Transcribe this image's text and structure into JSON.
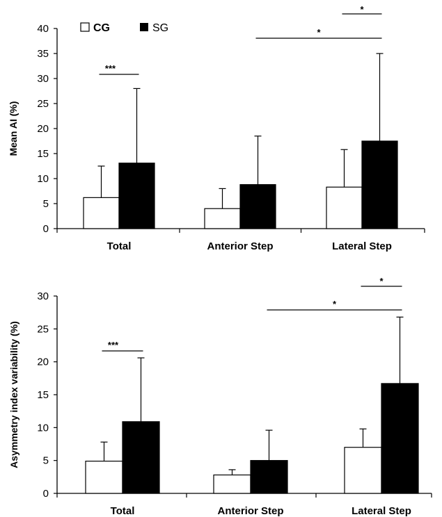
{
  "legend": {
    "cg": "CG",
    "sg": "SG"
  },
  "chart_data": [
    {
      "type": "bar",
      "ylabel": "Mean AI (%)",
      "xlabel": "",
      "ylim": [
        0,
        40
      ],
      "yticks": [
        0,
        5,
        10,
        15,
        20,
        25,
        30,
        35,
        40
      ],
      "categories": [
        "Total",
        "Anterior Step",
        "Lateral Step"
      ],
      "series": [
        {
          "name": "CG",
          "color": "#ffffff",
          "values": [
            6.2,
            4.0,
            8.3
          ],
          "errors": [
            6.3,
            4.0,
            7.5
          ]
        },
        {
          "name": "SG",
          "color": "#000000",
          "values": [
            13.1,
            8.8,
            17.5
          ],
          "errors": [
            14.9,
            9.7,
            17.5
          ]
        }
      ],
      "significance": [
        {
          "label": "***",
          "from": "Total CG",
          "to": "Total SG"
        },
        {
          "label": "*",
          "from": "Anterior Step SG",
          "to": "Lateral Step SG"
        },
        {
          "label": "*",
          "from": "Lateral Step CG",
          "to": "Lateral Step SG"
        }
      ]
    },
    {
      "type": "bar",
      "ylabel": "Asymmetry index variability  (%)",
      "xlabel": "",
      "ylim": [
        0,
        30
      ],
      "yticks": [
        0,
        5,
        10,
        15,
        20,
        25,
        30
      ],
      "categories": [
        "Total",
        "Anterior Step",
        "Lateral Step"
      ],
      "series": [
        {
          "name": "CG",
          "color": "#ffffff",
          "values": [
            4.9,
            2.8,
            7.0
          ],
          "errors": [
            2.9,
            0.8,
            2.8
          ]
        },
        {
          "name": "SG",
          "color": "#000000",
          "values": [
            10.9,
            5.0,
            16.7
          ],
          "errors": [
            9.7,
            4.6,
            10.1
          ]
        }
      ],
      "significance": [
        {
          "label": "***",
          "from": "Total CG",
          "to": "Total SG"
        },
        {
          "label": "*",
          "from": "Anterior Step SG",
          "to": "Lateral Step SG"
        },
        {
          "label": "*",
          "from": "Lateral Step CG",
          "to": "Lateral Step SG"
        }
      ]
    }
  ]
}
